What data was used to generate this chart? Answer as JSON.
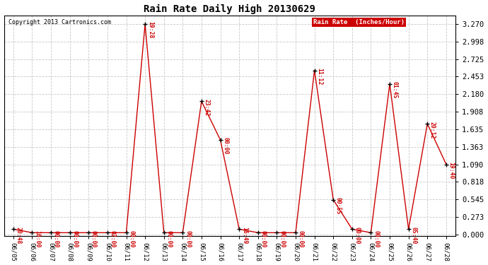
{
  "title": "Rain Rate Daily High 20130629",
  "copyright": "Copyright 2013 Cartronics.com",
  "legend_label": "Rain Rate  (Inches/Hour)",
  "background_color": "#ffffff",
  "plot_bg_color": "#ffffff",
  "line_color": "#cc0000",
  "marker_color": "#000000",
  "annotation_color": "#cc0000",
  "grid_color": "#c8c8c8",
  "yticks": [
    0.0,
    0.273,
    0.545,
    0.818,
    1.09,
    1.363,
    1.635,
    1.908,
    2.18,
    2.453,
    2.725,
    2.998,
    3.27
  ],
  "dates": [
    "06/05",
    "06/06",
    "06/07",
    "06/08",
    "06/09",
    "06/10",
    "06/11",
    "06/12",
    "06/13",
    "06/14",
    "06/15",
    "06/16",
    "06/17",
    "06/18",
    "06/19",
    "06/20",
    "06/21",
    "06/22",
    "06/23",
    "06/24",
    "06/25",
    "06/26",
    "06/27",
    "06/28"
  ],
  "values": [
    0.082,
    0.027,
    0.027,
    0.027,
    0.027,
    0.027,
    0.027,
    3.27,
    0.027,
    0.027,
    2.07,
    1.47,
    0.082,
    0.027,
    0.027,
    0.027,
    2.55,
    0.54,
    0.082,
    0.027,
    2.34,
    0.082,
    1.72,
    1.09
  ],
  "annotations": [
    {
      "idx": 0,
      "label": "20:48"
    },
    {
      "idx": 1,
      "label": "16:00"
    },
    {
      "idx": 2,
      "label": "00:00"
    },
    {
      "idx": 3,
      "label": "00:00"
    },
    {
      "idx": 4,
      "label": "00:00"
    },
    {
      "idx": 5,
      "label": "02:00"
    },
    {
      "idx": 6,
      "label": "00:00"
    },
    {
      "idx": 7,
      "label": "19:28"
    },
    {
      "idx": 8,
      "label": "00:00"
    },
    {
      "idx": 9,
      "label": "00:00"
    },
    {
      "idx": 10,
      "label": "23:42"
    },
    {
      "idx": 11,
      "label": "00:00"
    },
    {
      "idx": 12,
      "label": "16:49"
    },
    {
      "idx": 13,
      "label": "00:00"
    },
    {
      "idx": 14,
      "label": "00:00"
    },
    {
      "idx": 15,
      "label": "00:00"
    },
    {
      "idx": 16,
      "label": "11:12"
    },
    {
      "idx": 17,
      "label": "00:55"
    },
    {
      "idx": 18,
      "label": "00:00"
    },
    {
      "idx": 19,
      "label": "00:00"
    },
    {
      "idx": 20,
      "label": "01:45"
    },
    {
      "idx": 21,
      "label": "05:40"
    },
    {
      "idx": 22,
      "label": "20:12"
    },
    {
      "idx": 23,
      "label": "19:40"
    }
  ],
  "ylim_min": -0.02,
  "ylim_max": 3.4,
  "figwidth": 6.9,
  "figheight": 3.75,
  "dpi": 100
}
